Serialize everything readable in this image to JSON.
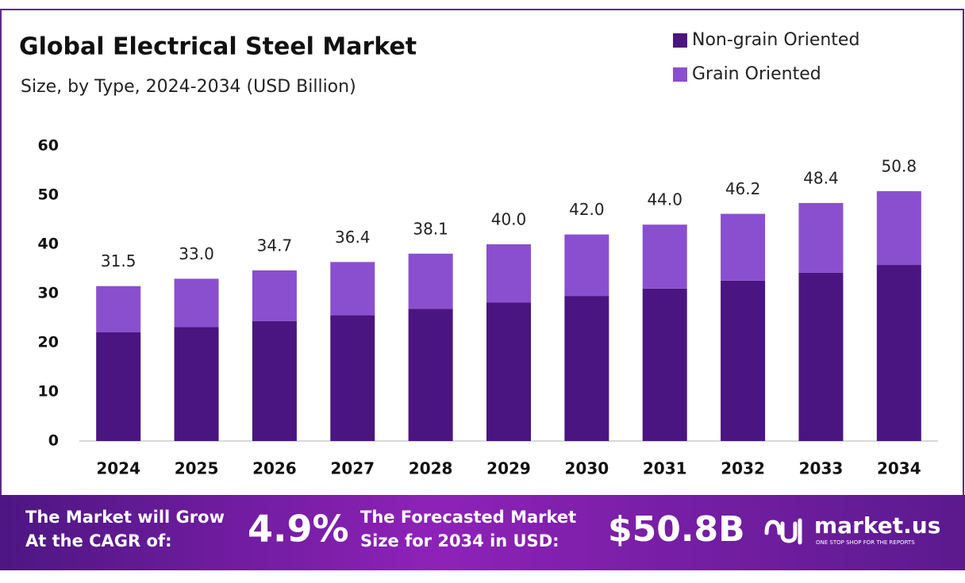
{
  "chart_data": {
    "type": "bar",
    "stacked": true,
    "title": "Global Electrical Steel Market",
    "subtitle": "Size, by Type, 2024-2034 (USD Billion)",
    "categories": [
      "2024",
      "2025",
      "2026",
      "2027",
      "2028",
      "2029",
      "2030",
      "2031",
      "2032",
      "2033",
      "2034"
    ],
    "series": [
      {
        "name": "Non-grain Oriented",
        "color": "#4a1580",
        "values": [
          22.1,
          23.2,
          24.4,
          25.6,
          26.9,
          28.2,
          29.5,
          31.0,
          32.6,
          34.2,
          35.8
        ]
      },
      {
        "name": "Grain Oriented",
        "color": "#8a4fcf",
        "values": [
          9.4,
          9.8,
          10.3,
          10.8,
          11.2,
          11.8,
          12.5,
          13.0,
          13.6,
          14.2,
          15.0
        ]
      }
    ],
    "totals": [
      31.5,
      33.0,
      34.7,
      36.4,
      38.1,
      40.0,
      42.0,
      44.0,
      46.2,
      48.4,
      50.8
    ],
    "total_labels": [
      "31.5",
      "33.0",
      "34.7",
      "36.4",
      "38.1",
      "40.0",
      "42.0",
      "44.0",
      "46.2",
      "48.4",
      "50.8"
    ],
    "ylim": [
      0,
      60
    ],
    "yticks": [
      0,
      10,
      20,
      30,
      40,
      50,
      60
    ],
    "grid": false,
    "legend": "top-right"
  },
  "footer": {
    "cagr_text": [
      "The Market will Grow",
      "At the CAGR of:"
    ],
    "cagr_value": "4.9%",
    "forecast_text": [
      "The Forecasted Market",
      "Size for 2034 in USD:"
    ],
    "forecast_value": "$50.8B",
    "brand": "market.us",
    "tagline": "ONE STOP SHOP FOR THE REPORTS"
  }
}
